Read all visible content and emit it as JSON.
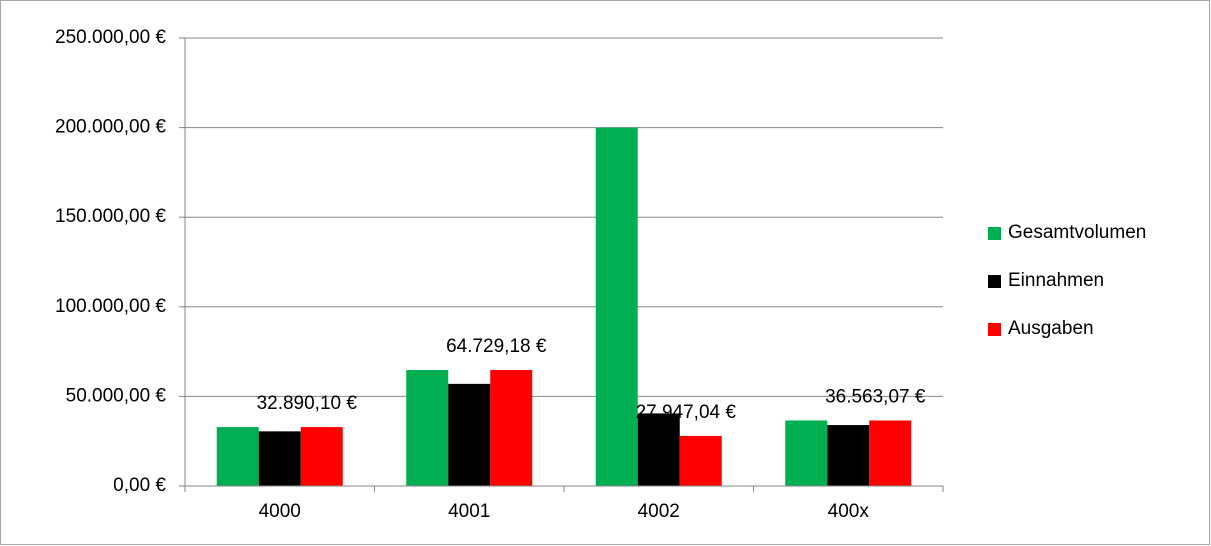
{
  "chart_data": {
    "type": "bar",
    "categories": [
      "4000",
      "4001",
      "4002",
      "400x"
    ],
    "series": [
      {
        "name": "Gesamtvolumen",
        "color": "#00b050",
        "values": [
          32890.1,
          64729.18,
          200000,
          36563.07
        ]
      },
      {
        "name": "Einnahmen",
        "color": "#000000",
        "values": [
          30500,
          57000,
          40500,
          34000
        ]
      },
      {
        "name": "Ausgaben",
        "color": "#ff0000",
        "values": [
          32890.1,
          64729.18,
          27947.04,
          36563.07
        ],
        "value_labels": [
          "32.890,10 €",
          "64.729,18 €",
          "27.947,04 €",
          "36.563,07 €"
        ]
      }
    ],
    "ylim": [
      0,
      250000
    ],
    "yticks": [
      {
        "value": 0,
        "label": "0,00 €"
      },
      {
        "value": 50000,
        "label": "50.000,00 €"
      },
      {
        "value": 100000,
        "label": "100.000,00 €"
      },
      {
        "value": 150000,
        "label": "150.000,00 €"
      },
      {
        "value": 200000,
        "label": "200.000,00 €"
      },
      {
        "value": 250000,
        "label": "250.000,00 €"
      }
    ],
    "grid": true,
    "legend": "right"
  }
}
